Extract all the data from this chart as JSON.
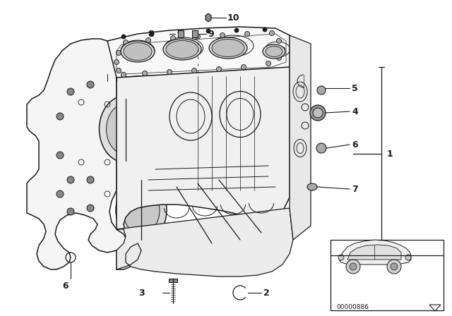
{
  "bg_color": "#ffffff",
  "line_color": "#1a1a1a",
  "figure_width": 6.4,
  "figure_height": 4.48,
  "dpi": 100,
  "part_number_text": "00000886"
}
